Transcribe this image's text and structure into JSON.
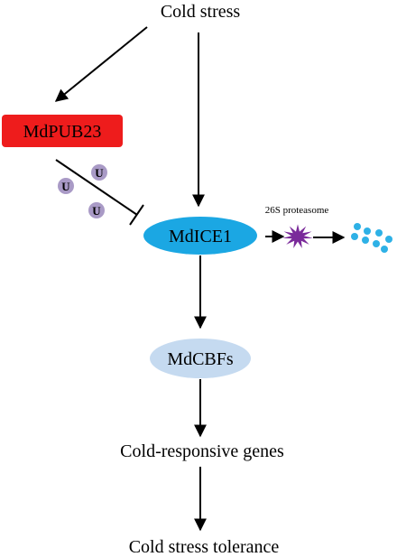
{
  "nodes": {
    "cold_stress": "Cold stress",
    "mdpub23": "MdPUB23",
    "mdice1": "MdICE1",
    "mdcbfs": "MdCBFs",
    "cold_genes": "Cold-responsive genes",
    "tolerance": "Cold stress tolerance"
  },
  "labels": {
    "proteasome": "26S proteasome",
    "ubiquitin": "U"
  },
  "colors": {
    "mdpub23_fill": "#ee1c1c",
    "mdice1_fill": "#1ba7e3",
    "mdcbfs_fill": "#c5daf0",
    "ubiquitin_fill": "#a99ac6",
    "proteasome_fill": "#7a2a9a",
    "fragment_fill": "#2eb1e6",
    "line": "#000000"
  }
}
